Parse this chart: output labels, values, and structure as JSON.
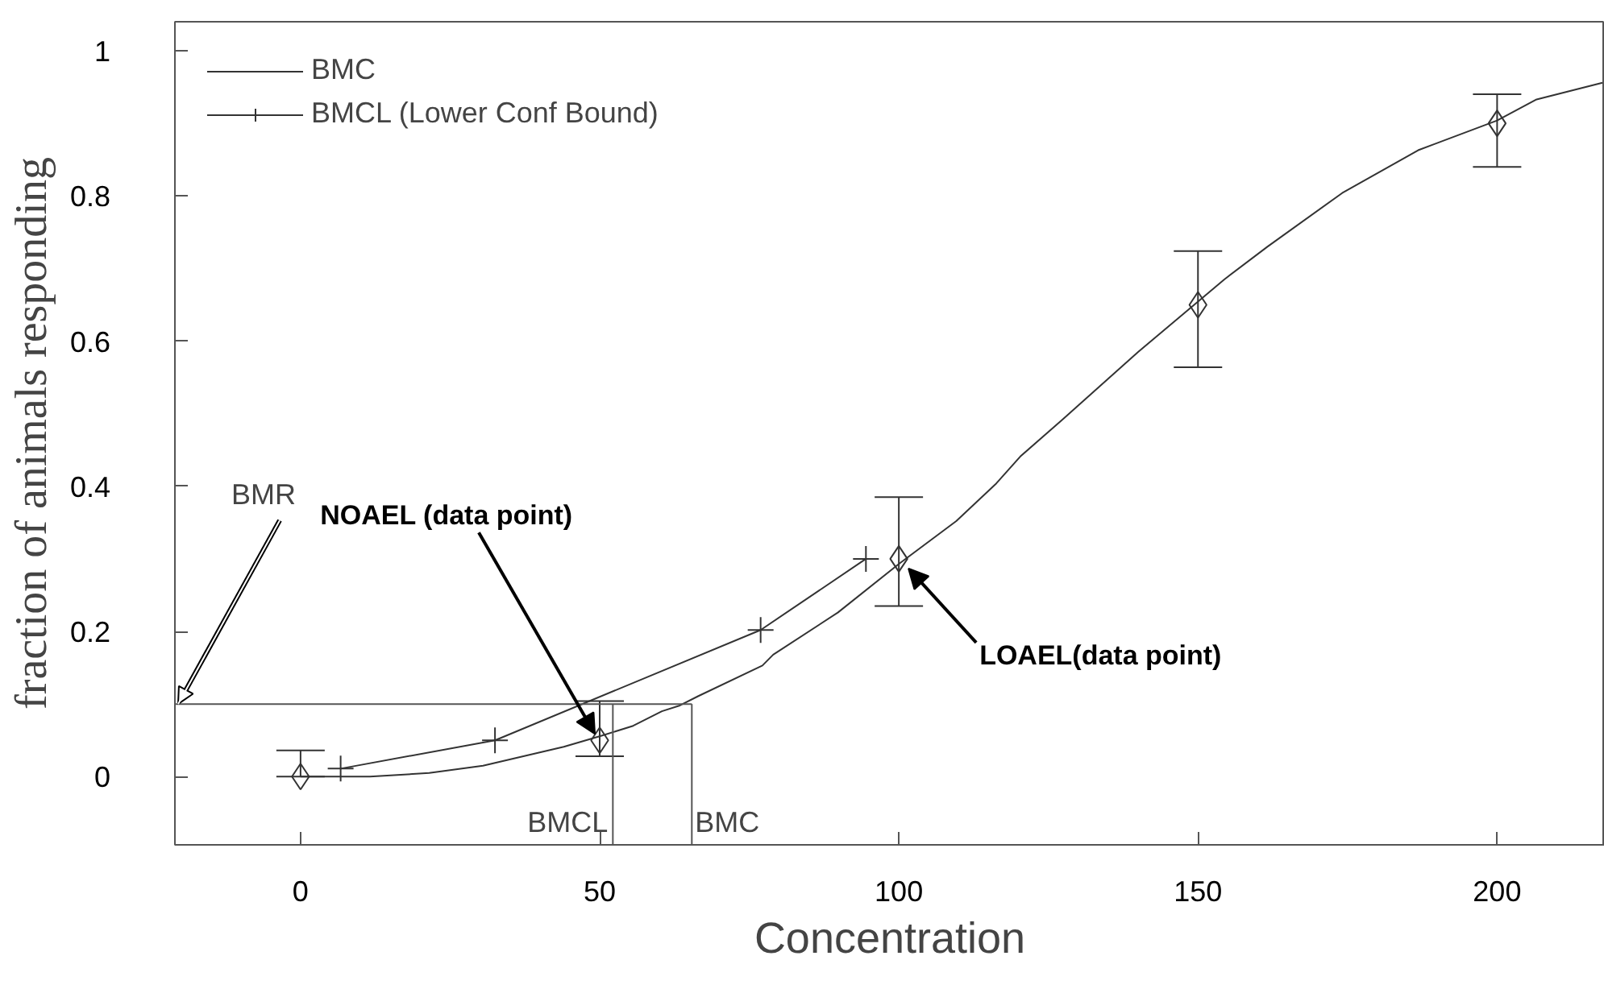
{
  "chart_data": {
    "type": "line",
    "xlabel": "Concentration",
    "ylabel": "fraction of animals responding",
    "xlim": [
      -21,
      218
    ],
    "ylim": [
      -0.094,
      1.04
    ],
    "xticks": [
      0,
      50,
      100,
      150,
      200
    ],
    "yticks": [
      0,
      0.2,
      0.4,
      0.6,
      0.8,
      1
    ],
    "legend": "top left",
    "series": [
      {
        "name": "BMC",
        "color": "#333333",
        "marker": "none",
        "x": [
          0,
          11.6,
          21.5,
          30.5,
          44,
          50.2,
          55.6,
          60.4,
          63.4,
          66.5,
          77.2,
          79,
          89.8,
          100,
          109.6,
          116.3,
          120.3,
          127.5,
          140,
          154.4,
          161.6,
          174.1,
          186.8,
          200,
          206.6,
          217.6
        ],
        "values": [
          0,
          0,
          0.005,
          0.015,
          0.041,
          0.056,
          0.07,
          0.09,
          0.098,
          0.111,
          0.153,
          0.168,
          0.226,
          0.293,
          0.352,
          0.404,
          0.441,
          0.493,
          0.585,
          0.685,
          0.73,
          0.804,
          0.863,
          0.904,
          0.933,
          0.956
        ]
      },
      {
        "name": "BMCL (Lower Conf Bound)",
        "color": "#333333",
        "marker": "cross",
        "x": [
          6.7,
          32.5,
          76.9,
          94.5
        ],
        "values": [
          0.011,
          0.05,
          0.202,
          0.3
        ]
      },
      {
        "type": "scatter",
        "color": "#333333",
        "marker": "diamond",
        "x": [
          0,
          50,
          100,
          150,
          200
        ],
        "values": [
          0,
          0.05,
          0.3,
          0.65,
          0.9
        ],
        "errors": [
          [
            0,
            0.036
          ],
          [
            0.028,
            0.104
          ],
          [
            0.235,
            0.385
          ],
          [
            0.564,
            0.724
          ],
          [
            0.84,
            0.94
          ]
        ]
      }
    ],
    "ref_lines": [
      {
        "axis": "y",
        "value": 0.1,
        "label": "BMR"
      },
      {
        "axis": "x",
        "value": 52.2,
        "label": "BMCL"
      },
      {
        "axis": "x",
        "value": 65.4,
        "label": "BMC"
      }
    ],
    "annotations": [
      {
        "text": "NOAEL (data point)",
        "x": 50,
        "y": 0.05
      },
      {
        "text": "LOAEL(data point)",
        "x": 100,
        "y": 0.3
      }
    ]
  }
}
